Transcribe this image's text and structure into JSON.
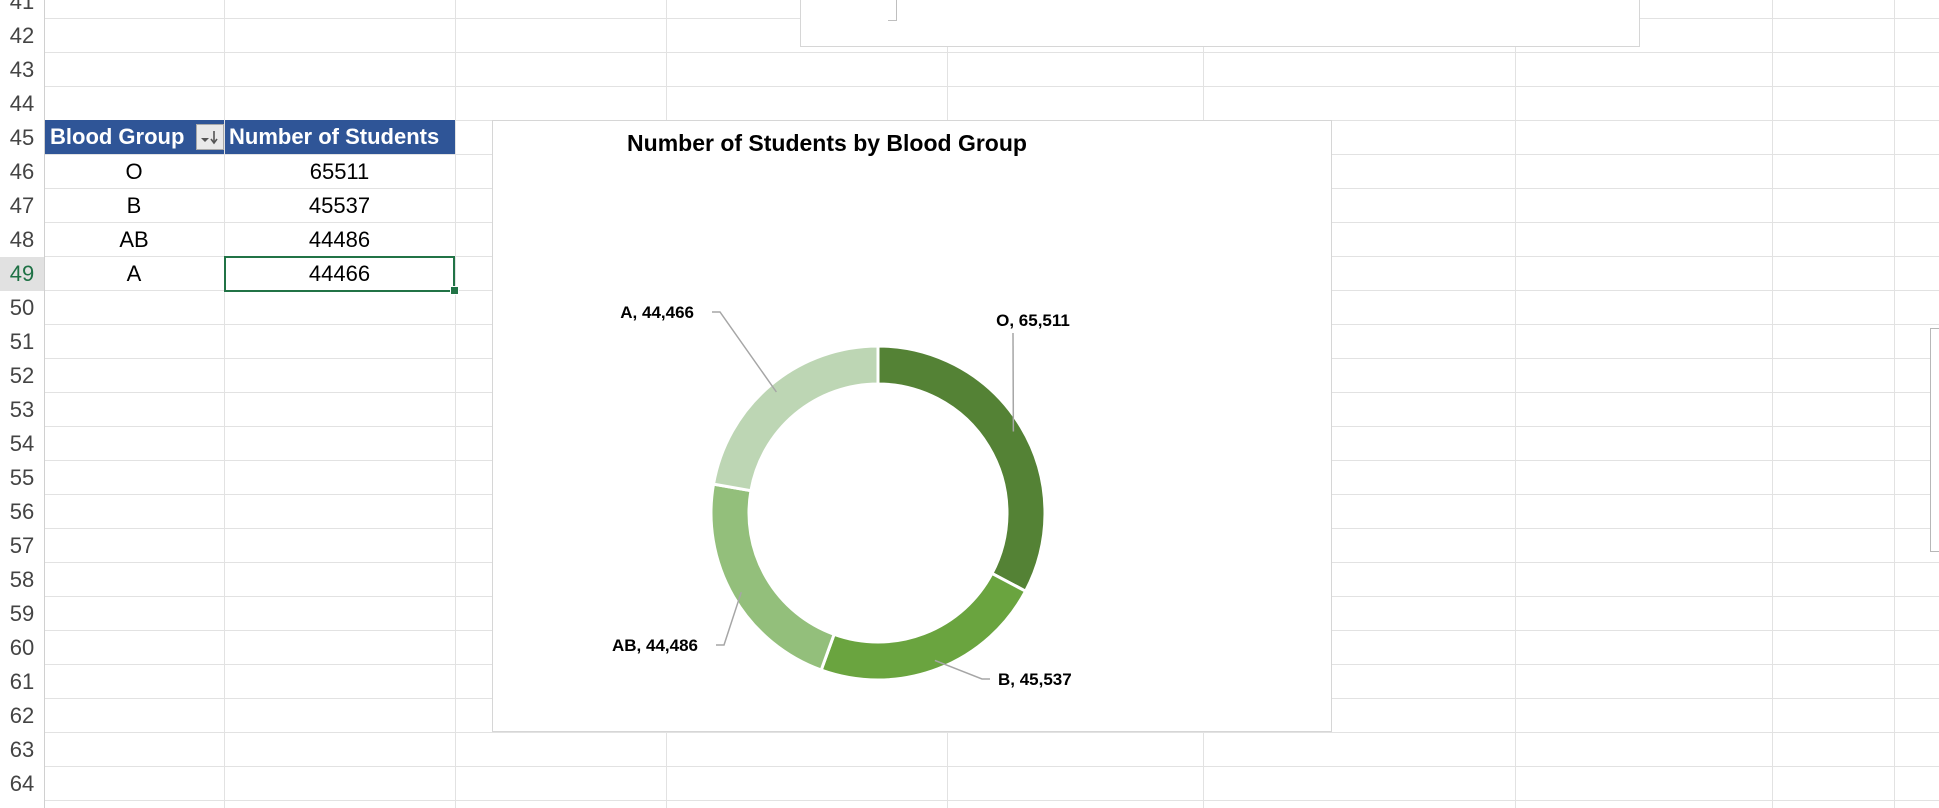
{
  "row_numbers": [
    "41",
    "42",
    "43",
    "44",
    "45",
    "46",
    "47",
    "48",
    "49",
    "50",
    "51",
    "52",
    "53",
    "54",
    "55",
    "56",
    "57",
    "58",
    "59",
    "60",
    "61",
    "62",
    "63",
    "64"
  ],
  "selected_row": "49",
  "table": {
    "headers": [
      "Blood Group",
      "Number of Students"
    ],
    "rows": [
      {
        "group": "O",
        "count": "65511"
      },
      {
        "group": "B",
        "count": "45537"
      },
      {
        "group": "AB",
        "count": "44486"
      },
      {
        "group": "A",
        "count": "44466"
      }
    ]
  },
  "colors": {
    "header_fill": "#2f5597",
    "selection": "#217346",
    "slices": [
      "#548235",
      "#6aa43f",
      "#93bf7b",
      "#bdd6b4"
    ]
  },
  "icons": {
    "sort": "sort-descending-icon"
  },
  "chart_data": {
    "type": "pie",
    "subtype": "doughnut",
    "title": "Number of Students by Blood Group",
    "categories": [
      "O",
      "B",
      "AB",
      "A"
    ],
    "values": [
      65511,
      45537,
      44486,
      44466
    ],
    "data_labels": [
      "O, 65,511",
      "B, 45,537",
      "AB, 44,486",
      "A, 44,466"
    ],
    "legend": "none"
  }
}
